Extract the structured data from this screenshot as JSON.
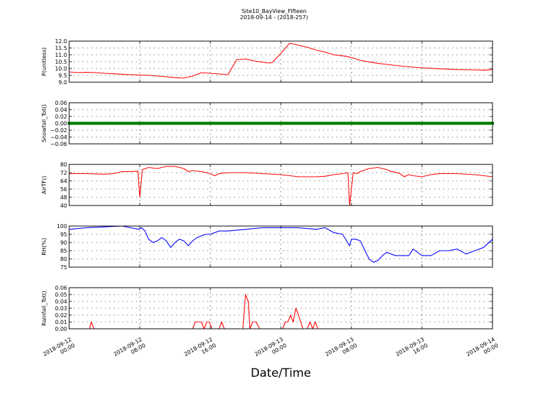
{
  "figure": {
    "title_line1": "Site10_BayView_Fifteen",
    "title_line2": "2018-09-14 - (2018-257)",
    "xlabel": "Date/Time"
  },
  "chart_data": [
    {
      "type": "line",
      "ylabel": "P(unitless)",
      "color": "#ff0000",
      "ylim": [
        9.0,
        12.0
      ],
      "yticks": [
        "9.0",
        "9.5",
        "10.0",
        "10.5",
        "11.0",
        "11.5",
        "12.0"
      ],
      "grid": true,
      "x_hours": [
        0,
        1,
        2,
        3,
        4,
        5,
        6,
        7,
        8,
        9,
        10,
        11,
        12,
        13,
        14,
        15,
        16,
        17,
        18,
        19,
        20,
        21,
        22,
        22.6,
        23,
        24,
        25,
        26,
        27,
        28,
        29,
        30,
        31,
        31.5,
        32,
        33,
        34,
        35,
        36,
        38,
        40,
        42,
        44,
        46,
        47,
        48
      ],
      "values": [
        9.75,
        9.7,
        9.72,
        9.7,
        9.65,
        9.62,
        9.58,
        9.55,
        9.52,
        9.5,
        9.45,
        9.4,
        9.33,
        9.3,
        9.45,
        9.7,
        9.65,
        9.6,
        9.55,
        10.65,
        10.7,
        10.55,
        10.45,
        10.4,
        10.42,
        11.1,
        11.85,
        11.7,
        11.55,
        11.35,
        11.2,
        11.0,
        10.92,
        10.88,
        10.8,
        10.6,
        10.48,
        10.38,
        10.3,
        10.15,
        10.05,
        9.98,
        9.92,
        9.9,
        9.88,
        9.92
      ]
    },
    {
      "type": "scatter",
      "ylabel": "Snowfall_Tot()",
      "color": "#008000",
      "ylim": [
        -0.06,
        0.06
      ],
      "yticks": [
        "−0.06",
        "−0.04",
        "−0.02",
        "0.00",
        "0.02",
        "0.04",
        "0.06"
      ],
      "grid": true,
      "x_range_hours": [
        0,
        48
      ],
      "constant_value": 0.0
    },
    {
      "type": "line",
      "ylabel": "AirTF()",
      "color": "#ff0000",
      "ylim": [
        40,
        80
      ],
      "yticks": [
        "40",
        "48",
        "56",
        "64",
        "72",
        "80"
      ],
      "grid": true,
      "x_hours": [
        0,
        2,
        4,
        5,
        6,
        7,
        7.8,
        8,
        8.3,
        9,
        10,
        11,
        12,
        13,
        13.5,
        14,
        15,
        16,
        16.5,
        17,
        18,
        20,
        22,
        24,
        26,
        28,
        29,
        30,
        31,
        31.6,
        31.8,
        32.2,
        32.6,
        33,
        34,
        35,
        36,
        36.5,
        37,
        37.5,
        38,
        38.5,
        39,
        40,
        41,
        42,
        44,
        46,
        48
      ],
      "values": [
        71,
        71,
        70.5,
        71,
        73,
        73,
        73.5,
        48,
        75,
        77,
        76,
        78,
        78,
        76,
        73,
        74,
        73,
        71,
        69,
        71,
        72,
        72,
        71,
        70,
        68,
        68,
        68.5,
        70,
        71,
        72,
        40,
        72,
        71,
        73,
        76,
        77,
        75,
        73,
        72.5,
        71,
        68,
        70,
        69,
        68,
        70,
        71,
        71,
        70,
        68
      ]
    },
    {
      "type": "line",
      "ylabel": "RH(%)",
      "color": "#0000ff",
      "ylim": [
        75,
        100
      ],
      "yticks": [
        "75",
        "80",
        "85",
        "90",
        "95",
        "100"
      ],
      "grid": true,
      "x_hours": [
        0,
        2,
        4,
        6,
        7.9,
        8.2,
        8.6,
        9,
        9.5,
        10,
        10.5,
        11,
        11.5,
        12,
        12.5,
        13,
        13.5,
        14,
        14.5,
        15,
        15.5,
        16,
        17,
        18,
        20,
        22,
        24,
        26,
        28,
        29,
        30,
        31,
        31.8,
        32,
        32.5,
        33,
        34,
        34.5,
        35,
        35.5,
        36,
        37,
        38,
        38.5,
        39,
        40,
        40.5,
        41,
        42,
        43,
        44,
        45,
        46,
        47,
        48
      ],
      "values": [
        98,
        99,
        99.5,
        100,
        98,
        99,
        97,
        92,
        90,
        91,
        93,
        91,
        87,
        90,
        92,
        91,
        88,
        91,
        93,
        94,
        95,
        95,
        97,
        97,
        98,
        99,
        99,
        99,
        98,
        99,
        96,
        95,
        88,
        92,
        92,
        91,
        80,
        78,
        79,
        82,
        84,
        82,
        82,
        82,
        86,
        82,
        82,
        82,
        85,
        85,
        86,
        83,
        85,
        87,
        92
      ]
    },
    {
      "type": "line",
      "ylabel": "Rainfall_Tot()",
      "color": "#ff0000",
      "ylim": [
        0.0,
        0.06
      ],
      "yticks": [
        "0.00",
        "0.01",
        "0.02",
        "0.03",
        "0.04",
        "0.05",
        "0.06"
      ],
      "grid": true,
      "x_hours": [
        0,
        2.3,
        2.5,
        2.8,
        14,
        14.3,
        15,
        15.3,
        15.6,
        15.9,
        16.2,
        17,
        17.3,
        17.6,
        19.7,
        20,
        20.3,
        20.5,
        20.8,
        21.2,
        21.6,
        22,
        24.2,
        24.5,
        24.8,
        25.1,
        25.4,
        25.7,
        26,
        26.5,
        27,
        27.3,
        27.6,
        27.9,
        28.2,
        48
      ],
      "values": [
        0,
        0,
        0.01,
        0,
        0,
        0.01,
        0.01,
        0,
        0.01,
        0.01,
        0,
        0,
        0.01,
        0,
        0,
        0.05,
        0.04,
        0,
        0.01,
        0.01,
        0,
        0,
        0,
        0.01,
        0.01,
        0.02,
        0.01,
        0.03,
        0.02,
        0,
        0,
        0.01,
        0,
        0.01,
        0,
        0
      ]
    }
  ],
  "x_axis": {
    "range_hours": [
      0,
      48
    ],
    "ticks": [
      {
        "hours": 0,
        "line1": "2018-09-12",
        "line2": "00:00"
      },
      {
        "hours": 8,
        "line1": "2018-09-12",
        "line2": "08:00"
      },
      {
        "hours": 16,
        "line1": "2018-09-12",
        "line2": "16:00"
      },
      {
        "hours": 24,
        "line1": "2018-09-13",
        "line2": "00:00"
      },
      {
        "hours": 32,
        "line1": "2018-09-13",
        "line2": "08:00"
      },
      {
        "hours": 40,
        "line1": "2018-09-13",
        "line2": "16:00"
      },
      {
        "hours": 48,
        "line1": "2018-09-14",
        "line2": "00:00"
      }
    ]
  }
}
